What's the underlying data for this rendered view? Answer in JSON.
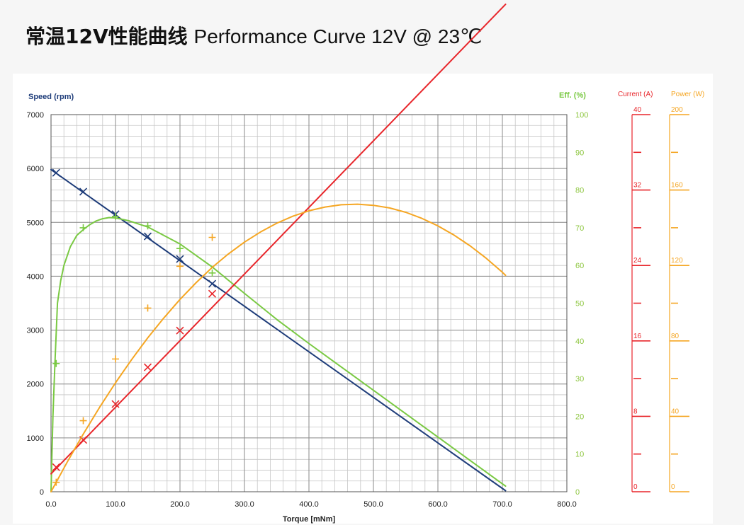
{
  "page": {
    "title_cn": "常温12V性能曲线",
    "title_en": "Performance Curve 12V @ 23℃"
  },
  "chart_data": {
    "type": "line",
    "xlabel": "Torque [mNm]",
    "xlim": [
      0,
      800
    ],
    "x_ticks": [
      "0.0",
      "100.0",
      "200.0",
      "300.0",
      "400.0",
      "500.0",
      "600.0",
      "700.0",
      "800.0"
    ],
    "axes": {
      "speed": {
        "label": "Speed (rpm)",
        "range": [
          0,
          7000
        ],
        "ticks": [
          "0",
          "1000",
          "2000",
          "3000",
          "4000",
          "5000",
          "6000",
          "7000"
        ],
        "color": "#1f3d7a"
      },
      "eff": {
        "label": "Eff. (%)",
        "range": [
          0,
          100
        ],
        "ticks": [
          "0",
          "10",
          "20",
          "30",
          "40",
          "50",
          "60",
          "70",
          "80",
          "90",
          "100"
        ],
        "color": "#7ac943"
      },
      "current": {
        "label": "Current (A)",
        "range": [
          0,
          40
        ],
        "ticks": [
          "0",
          "8",
          "16",
          "24",
          "32",
          "40"
        ],
        "color": "#e8262b"
      },
      "power": {
        "label": "Power (W)",
        "range": [
          0,
          200
        ],
        "ticks": [
          "0",
          "40",
          "80",
          "120",
          "160",
          "200"
        ],
        "color": "#f5a623"
      }
    },
    "series": [
      {
        "key": "speed",
        "axis": "speed",
        "color": "#1f3d7a",
        "x": [
          0,
          705
        ],
        "y": [
          5980,
          20
        ],
        "points_x": [
          8,
          50,
          100,
          150,
          200,
          250
        ],
        "points_y": [
          5920,
          5570,
          5150,
          4740,
          4320,
          3860
        ],
        "marker": "x"
      },
      {
        "key": "efficiency",
        "axis": "eff",
        "color": "#7ac943",
        "x": [
          0,
          3,
          6,
          10,
          15,
          20,
          30,
          40,
          50,
          60,
          70,
          80,
          90,
          100,
          120,
          150,
          200,
          250,
          300,
          350,
          400,
          450,
          500,
          550,
          600,
          650,
          700,
          705
        ],
        "y": [
          0,
          20,
          34,
          50,
          56,
          60,
          65,
          68,
          69.5,
          70.8,
          71.8,
          72.4,
          72.7,
          72.6,
          71.9,
          70.2,
          65.7,
          59.6,
          52.6,
          45.7,
          39.3,
          33.1,
          26.9,
          20.7,
          14.5,
          8.3,
          2.1,
          1.5
        ],
        "points_x": [
          8,
          50,
          100,
          150,
          200,
          250
        ],
        "points_y": [
          34,
          70,
          73,
          70.5,
          64.5,
          58
        ],
        "marker": "+"
      },
      {
        "key": "current",
        "axis": "current",
        "color": "#e8262b",
        "x": [
          0,
          705
        ],
        "y": [
          1.9,
          51.7
        ],
        "points_x": [
          8,
          50,
          100,
          150,
          200,
          250
        ],
        "points_y": [
          2.6,
          5.5,
          9.3,
          13.2,
          17.1,
          21.0
        ],
        "marker": "x"
      },
      {
        "key": "power",
        "axis": "power",
        "color": "#f5a623",
        "x": [
          0,
          25,
          50,
          75,
          100,
          125,
          150,
          175,
          200,
          225,
          250,
          275,
          300,
          325,
          350,
          375,
          400,
          425,
          450,
          475,
          500,
          525,
          550,
          575,
          600,
          625,
          650,
          675,
          700,
          705
        ],
        "y": [
          0,
          15.7,
          30.6,
          44.6,
          57.8,
          70.1,
          81.6,
          92.2,
          102,
          110.9,
          119,
          126.1,
          132.4,
          137.8,
          142.4,
          146.1,
          149,
          151,
          152.2,
          152.5,
          151.9,
          150.5,
          148.2,
          145,
          141,
          136.1,
          130.4,
          123.8,
          116.4,
          114.8
        ],
        "points_x": [
          8,
          50,
          100,
          150,
          200,
          250
        ],
        "points_y": [
          5.0,
          37.7,
          70.4,
          97.4,
          119.6,
          134.9
        ],
        "marker": "+"
      }
    ]
  }
}
